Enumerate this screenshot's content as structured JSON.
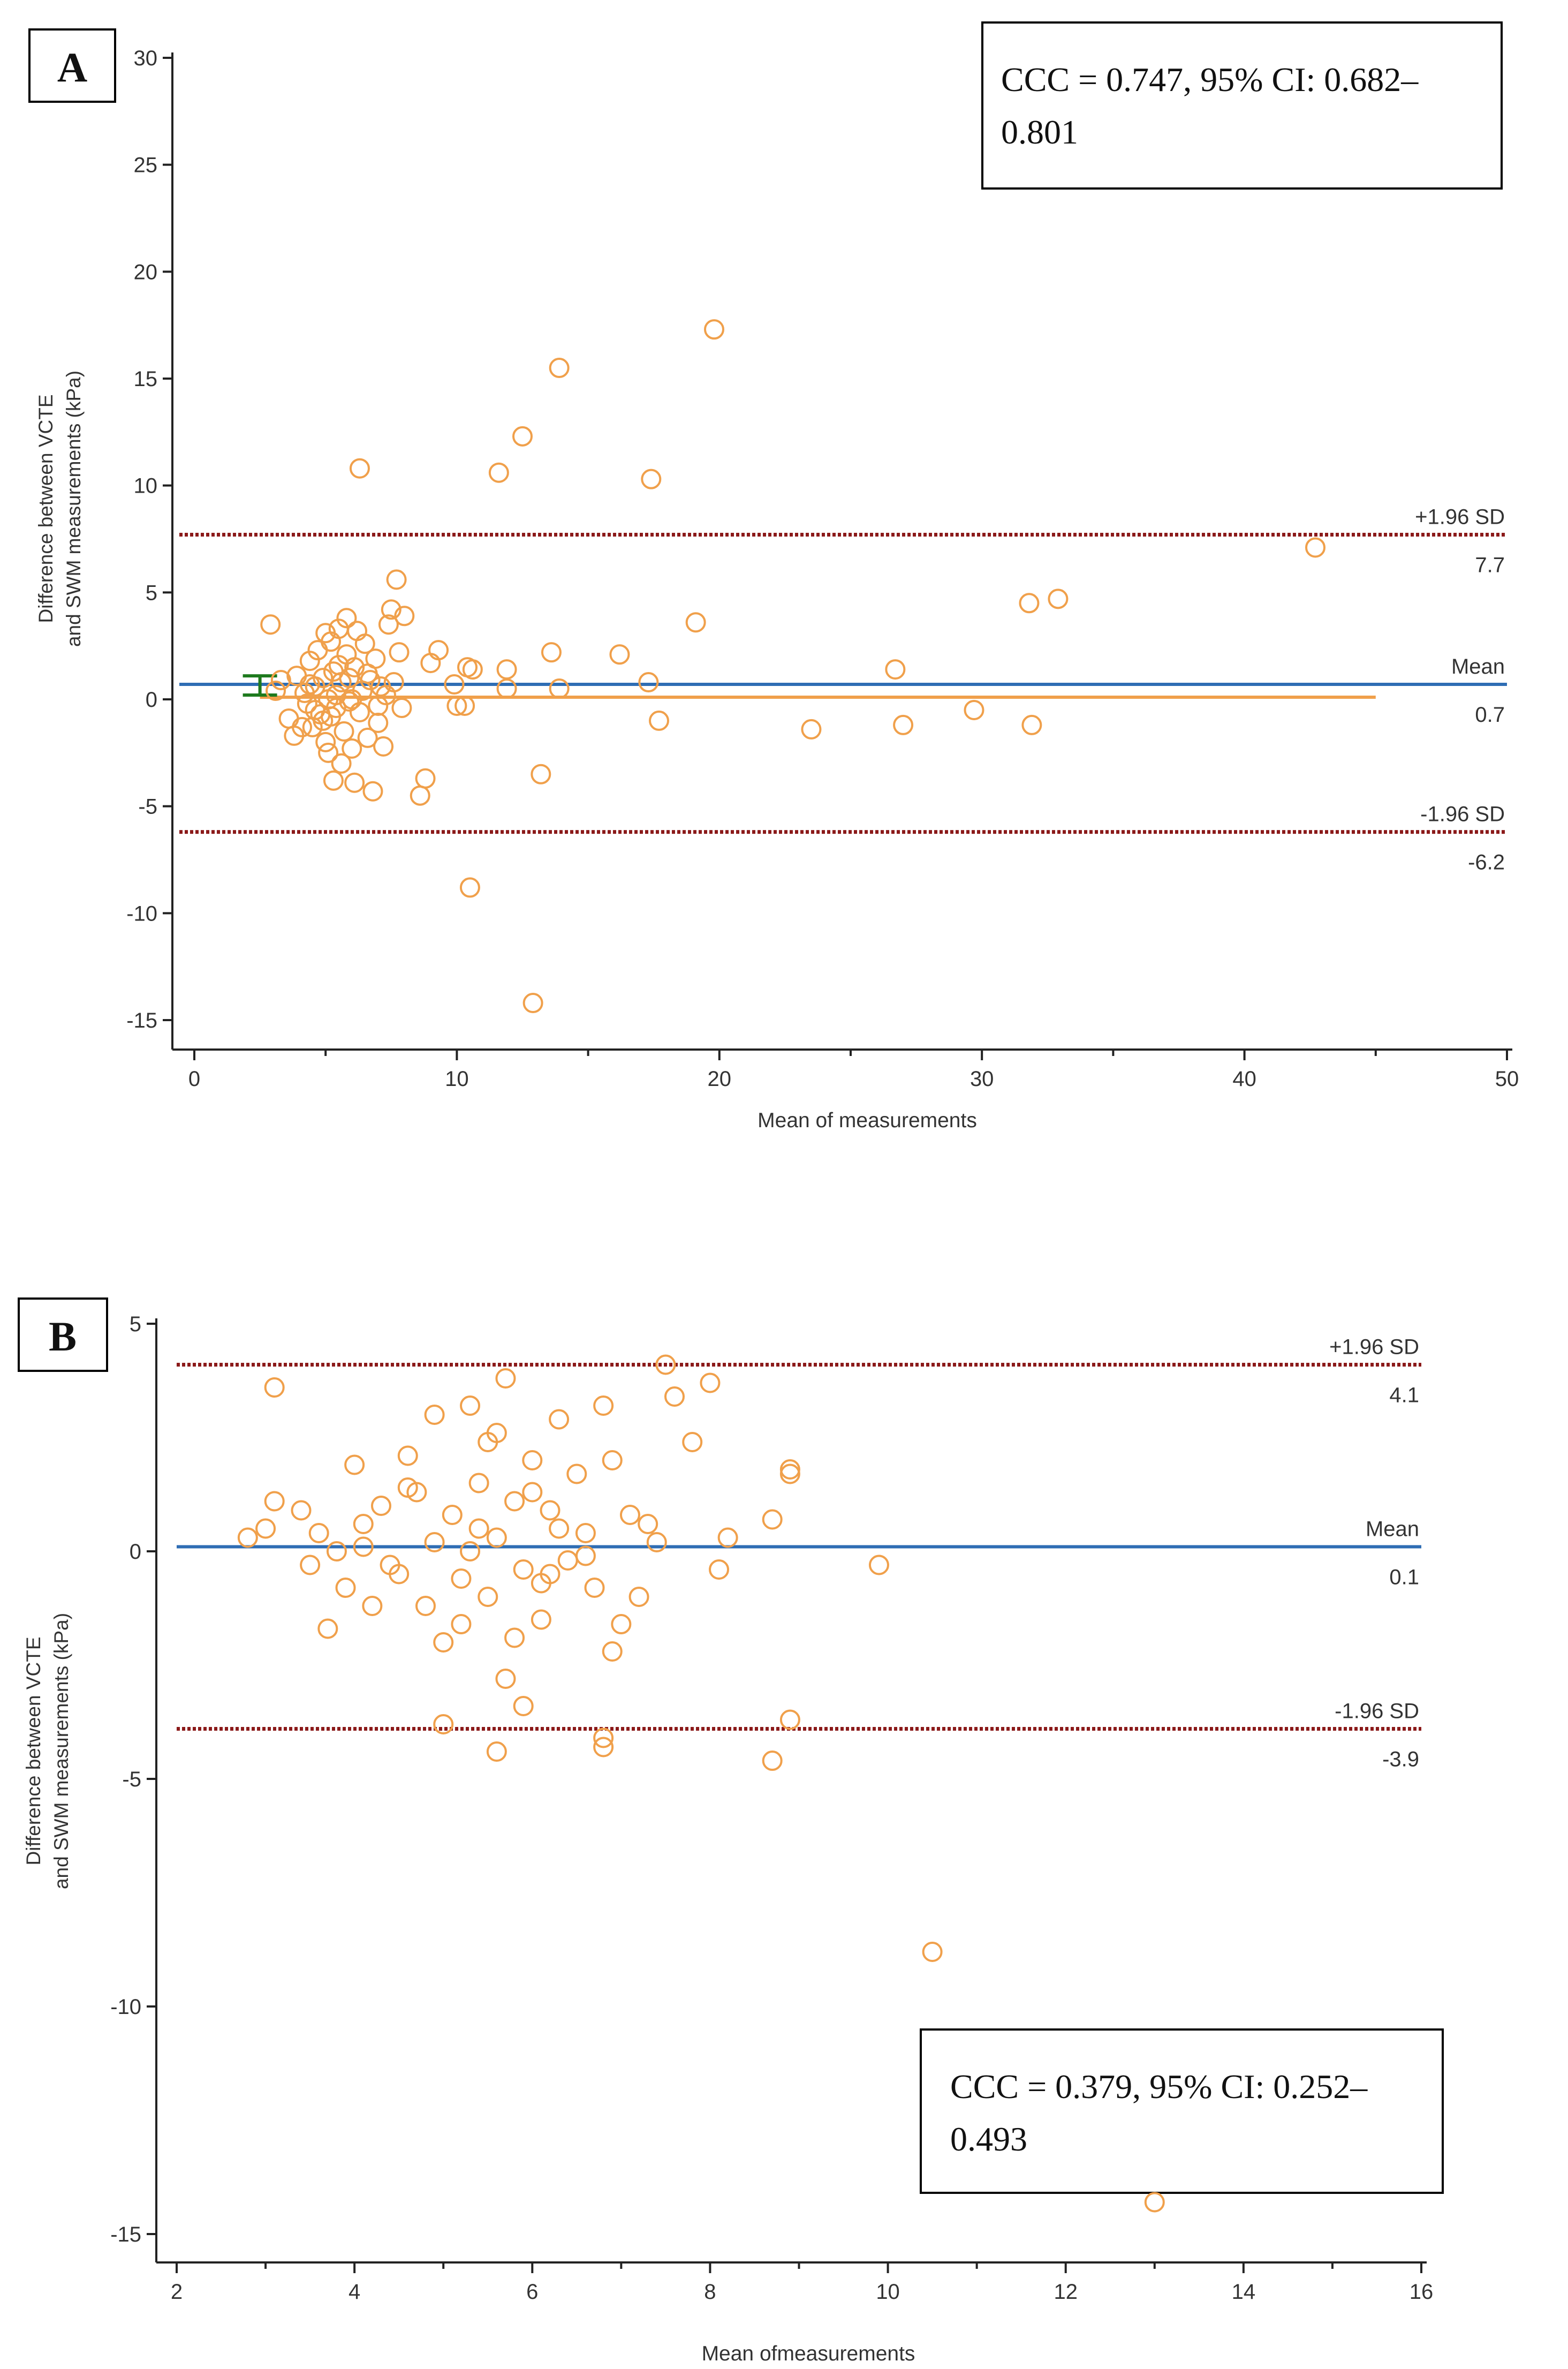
{
  "chart_data": [
    {
      "type": "scatter",
      "panel_label": "A",
      "annotation": {
        "line1": "CCC = 0.747, 95% CI: 0.682–",
        "line2": "0.801"
      },
      "xlabel": "Mean of measurements",
      "ylabel": {
        "line1": "Difference between VCTE",
        "line2": "and SWM measurements (kPa)"
      },
      "xlim": [
        0,
        50
      ],
      "ylim": [
        -15,
        30
      ],
      "x_ticks": [
        0,
        10,
        20,
        30,
        40,
        50
      ],
      "y_ticks": [
        -15,
        -10,
        -5,
        0,
        5,
        10,
        15,
        20,
        25,
        30
      ],
      "reference_lines": [
        {
          "label": "+1.96 SD",
          "value_label": "7.7",
          "y": 7.7,
          "style": "dotted",
          "color": "#8b1a1a"
        },
        {
          "label": "Mean",
          "value_label": "0.7",
          "y": 0.7,
          "style": "solid",
          "color": "#2e6db4"
        },
        {
          "label": "-1.96 SD",
          "value_label": "-6.2",
          "y": -6.2,
          "style": "dotted",
          "color": "#8b1a1a"
        }
      ],
      "regression_line": {
        "x": [
          2.5,
          45
        ],
        "y": [
          0.1,
          0.1
        ],
        "color": "#f0a04b"
      },
      "ci_bracket": {
        "x": 2.5,
        "y_low": 0.2,
        "y_high": 1.1,
        "color": "#1e7a1e"
      },
      "points": [
        [
          42.7,
          7.1
        ],
        [
          19.8,
          17.3
        ],
        [
          13.9,
          15.5
        ],
        [
          12.5,
          12.3
        ],
        [
          11.6,
          10.6
        ],
        [
          6.3,
          10.8
        ],
        [
          17.4,
          10.3
        ],
        [
          7.7,
          5.6
        ],
        [
          19.1,
          3.6
        ],
        [
          31.8,
          4.5
        ],
        [
          32.9,
          4.7
        ],
        [
          26.7,
          1.4
        ],
        [
          16.2,
          2.1
        ],
        [
          13.6,
          2.2
        ],
        [
          17.3,
          0.8
        ],
        [
          13.9,
          0.5
        ],
        [
          29.7,
          -0.5
        ],
        [
          17.7,
          -1.0
        ],
        [
          23.5,
          -1.4
        ],
        [
          27.0,
          -1.2
        ],
        [
          31.9,
          -1.2
        ],
        [
          10.5,
          -8.8
        ],
        [
          12.9,
          -14.2
        ],
        [
          13.2,
          -3.5
        ],
        [
          8.8,
          -3.7
        ],
        [
          8.6,
          -4.5
        ],
        [
          10.3,
          -0.3
        ],
        [
          10.0,
          -0.3
        ],
        [
          9.3,
          2.3
        ],
        [
          9.0,
          1.7
        ],
        [
          10.6,
          1.4
        ],
        [
          10.4,
          1.5
        ],
        [
          11.9,
          0.5
        ],
        [
          11.9,
          1.4
        ],
        [
          9.9,
          0.7
        ],
        [
          2.9,
          3.5
        ],
        [
          3.1,
          0.4
        ],
        [
          3.3,
          0.9
        ],
        [
          3.6,
          -0.9
        ],
        [
          3.8,
          -1.7
        ],
        [
          3.9,
          1.1
        ],
        [
          4.1,
          -1.3
        ],
        [
          4.2,
          0.3
        ],
        [
          4.4,
          1.8
        ],
        [
          4.5,
          -1.3
        ],
        [
          4.6,
          0.6
        ],
        [
          4.7,
          2.3
        ],
        [
          4.8,
          -0.7
        ],
        [
          4.9,
          1.0
        ],
        [
          5.0,
          3.1
        ],
        [
          5.0,
          -2.0
        ],
        [
          5.1,
          0.0
        ],
        [
          5.2,
          2.7
        ],
        [
          5.3,
          -3.8
        ],
        [
          5.3,
          1.3
        ],
        [
          5.4,
          -0.4
        ],
        [
          5.5,
          3.3
        ],
        [
          5.6,
          0.8
        ],
        [
          5.7,
          -1.5
        ],
        [
          5.8,
          3.8
        ],
        [
          5.8,
          2.1
        ],
        [
          5.9,
          -0.1
        ],
        [
          6.0,
          -2.3
        ],
        [
          6.1,
          1.5
        ],
        [
          6.2,
          3.2
        ],
        [
          6.3,
          -0.6
        ],
        [
          6.4,
          0.4
        ],
        [
          6.5,
          2.6
        ],
        [
          6.6,
          -1.8
        ],
        [
          6.7,
          0.9
        ],
        [
          6.8,
          -4.3
        ],
        [
          6.9,
          1.9
        ],
        [
          7.0,
          -1.1
        ],
        [
          7.1,
          0.6
        ],
        [
          7.2,
          -2.2
        ],
        [
          7.3,
          0.2
        ],
        [
          7.4,
          3.5
        ],
        [
          7.5,
          4.2
        ],
        [
          7.6,
          0.8
        ],
        [
          7.8,
          2.2
        ],
        [
          7.9,
          -0.4
        ],
        [
          8.0,
          3.9
        ],
        [
          5.1,
          -2.5
        ],
        [
          4.3,
          -0.2
        ],
        [
          5.6,
          -3.0
        ],
        [
          6.1,
          -3.9
        ],
        [
          5.4,
          0.2
        ],
        [
          4.9,
          -1.0
        ],
        [
          6.0,
          0.0
        ],
        [
          5.2,
          -0.8
        ],
        [
          4.6,
          -0.5
        ],
        [
          5.9,
          1.0
        ],
        [
          6.6,
          1.2
        ],
        [
          7.0,
          -0.3
        ],
        [
          5.5,
          1.6
        ],
        [
          4.4,
          0.7
        ]
      ]
    },
    {
      "type": "scatter",
      "panel_label": "B",
      "annotation": {
        "line1": "CCC = 0.379, 95% CI: 0.252–",
        "line2": "0.493"
      },
      "xlabel": "Mean ofmeasurements",
      "ylabel": {
        "line1": "Difference between VCTE",
        "line2": "and SWM measurements (kPa)"
      },
      "xlim": [
        2,
        16
      ],
      "ylim": [
        -15,
        5
      ],
      "x_ticks": [
        2,
        4,
        6,
        8,
        10,
        12,
        14,
        16
      ],
      "y_ticks": [
        -15,
        -10,
        -5,
        0,
        5
      ],
      "reference_lines": [
        {
          "label": "+1.96 SD",
          "value_label": "4.1",
          "y": 4.1,
          "style": "dotted",
          "color": "#8b1a1a"
        },
        {
          "label": "Mean",
          "value_label": "0.1",
          "y": 0.1,
          "style": "solid",
          "color": "#2e6db4"
        },
        {
          "label": "-1.96 SD",
          "value_label": "-3.9",
          "y": -3.9,
          "style": "dotted",
          "color": "#8b1a1a"
        }
      ],
      "points": [
        [
          3.1,
          3.6
        ],
        [
          7.5,
          4.1
        ],
        [
          8.0,
          3.7
        ],
        [
          7.6,
          3.4
        ],
        [
          5.7,
          3.8
        ],
        [
          6.8,
          3.2
        ],
        [
          5.3,
          3.2
        ],
        [
          4.9,
          3.0
        ],
        [
          7.8,
          2.4
        ],
        [
          6.3,
          2.9
        ],
        [
          5.5,
          2.4
        ],
        [
          4.6,
          2.1
        ],
        [
          6.9,
          2.0
        ],
        [
          8.9,
          1.8
        ],
        [
          8.9,
          1.7
        ],
        [
          4.0,
          1.9
        ],
        [
          3.1,
          1.1
        ],
        [
          3.4,
          0.9
        ],
        [
          2.8,
          0.3
        ],
        [
          3.0,
          0.5
        ],
        [
          3.6,
          0.4
        ],
        [
          3.8,
          0.0
        ],
        [
          3.5,
          -0.3
        ],
        [
          3.7,
          -1.7
        ],
        [
          4.1,
          0.6
        ],
        [
          4.3,
          1.0
        ],
        [
          4.5,
          -0.5
        ],
        [
          4.7,
          1.3
        ],
        [
          4.8,
          -1.2
        ],
        [
          5.0,
          -2.0
        ],
        [
          5.1,
          0.8
        ],
        [
          5.2,
          -0.6
        ],
        [
          5.4,
          1.5
        ],
        [
          5.5,
          -1.0
        ],
        [
          5.6,
          0.3
        ],
        [
          5.7,
          -2.8
        ],
        [
          5.8,
          1.1
        ],
        [
          5.9,
          -0.4
        ],
        [
          6.0,
          2.0
        ],
        [
          6.1,
          -1.5
        ],
        [
          6.2,
          0.9
        ],
        [
          6.4,
          -0.2
        ],
        [
          6.5,
          1.7
        ],
        [
          6.6,
          0.4
        ],
        [
          6.7,
          -0.8
        ],
        [
          6.9,
          -2.2
        ],
        [
          7.1,
          0.8
        ],
        [
          7.2,
          -1.0
        ],
        [
          7.4,
          0.2
        ],
        [
          8.1,
          -0.4
        ],
        [
          8.2,
          0.3
        ],
        [
          8.7,
          0.7
        ],
        [
          9.9,
          -0.3
        ],
        [
          5.0,
          -3.8
        ],
        [
          5.6,
          -4.4
        ],
        [
          6.8,
          -4.1
        ],
        [
          6.8,
          -4.3
        ],
        [
          8.7,
          -4.6
        ],
        [
          8.9,
          -3.7
        ],
        [
          5.9,
          -3.4
        ],
        [
          10.5,
          -8.8
        ],
        [
          13.0,
          -14.3
        ],
        [
          4.2,
          -1.2
        ],
        [
          4.4,
          -0.3
        ],
        [
          5.3,
          0.0
        ],
        [
          5.8,
          -1.9
        ],
        [
          6.1,
          -0.7
        ],
        [
          6.3,
          0.5
        ],
        [
          7.0,
          -1.6
        ],
        [
          4.9,
          0.2
        ],
        [
          5.6,
          2.6
        ],
        [
          6.6,
          -0.1
        ],
        [
          7.3,
          0.6
        ],
        [
          4.6,
          1.4
        ],
        [
          5.2,
          -1.6
        ],
        [
          6.0,
          1.3
        ],
        [
          3.9,
          -0.8
        ],
        [
          5.4,
          0.5
        ],
        [
          6.2,
          -0.5
        ],
        [
          4.1,
          0.1
        ]
      ]
    }
  ]
}
